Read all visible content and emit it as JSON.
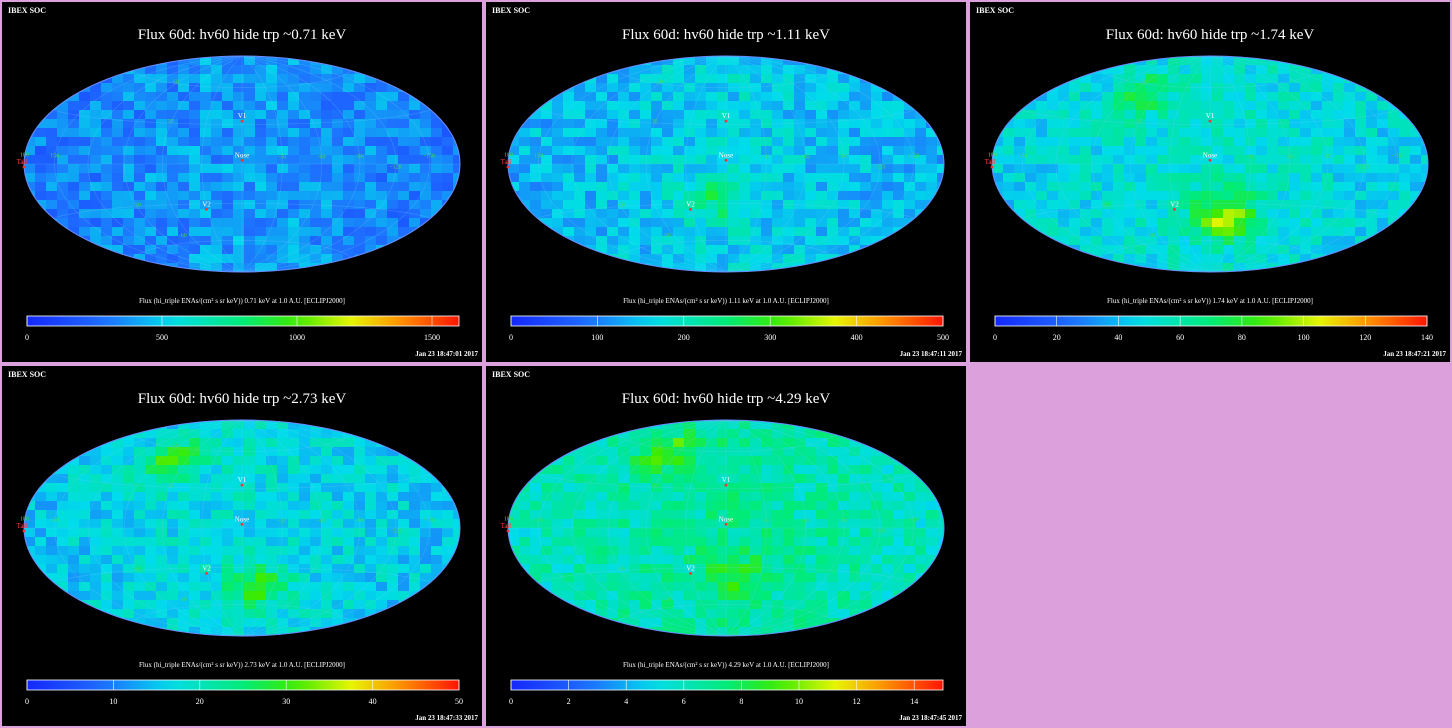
{
  "header_label": "IBEX SOC",
  "chart_data": [
    {
      "type": "heatmap",
      "title": "Flux   60d: hv60 hide trp ~0.71 keV",
      "colorbar_label": "Flux (hi_triple ENAs/(cm² s sr keV))  0.71 keV at 1.0 A.U. [ECLIPJ2000]",
      "colorbar_range": [
        0,
        1600
      ],
      "colorbar_ticks": [
        "0",
        "500",
        "1000",
        "1500"
      ],
      "colorbar_tick_values": [
        0,
        500,
        1000,
        1500
      ],
      "timestamp": "Jan 23 18:47:01 2017",
      "mean_level": 0.25,
      "hot_spots": [],
      "markers": [
        {
          "label": "V1",
          "lon": 0,
          "lat": 35
        },
        {
          "label": "Nose",
          "lon": 0,
          "lat": 5
        },
        {
          "label": "V2",
          "lon": 30,
          "lat": -32
        },
        {
          "label": "Tail",
          "lon": 180,
          "lat": 0
        }
      ],
      "grid_labels": [
        "-30",
        "-60",
        "-90",
        "-120",
        "-150",
        "180",
        "150",
        "60",
        "30",
        "-30",
        "-60"
      ]
    },
    {
      "type": "heatmap",
      "title": "Flux   60d: hv60 hide trp ~1.11 keV",
      "colorbar_label": "Flux (hi_triple ENAs/(cm² s sr keV))  1.11 keV at 1.0 A.U. [ECLIPJ2000]",
      "colorbar_range": [
        0,
        500
      ],
      "colorbar_ticks": [
        "0",
        "100",
        "200",
        "300",
        "400",
        "500"
      ],
      "colorbar_tick_values": [
        0,
        100,
        200,
        300,
        400,
        500
      ],
      "timestamp": "Jan 23 18:47:11 2017",
      "mean_level": 0.33,
      "hot_spots": [
        {
          "lon": 10,
          "lat": -20,
          "level": 0.5
        }
      ],
      "markers": [
        {
          "label": "V1",
          "lon": 0,
          "lat": 35
        },
        {
          "label": "Nose",
          "lon": 0,
          "lat": 5
        },
        {
          "label": "V2",
          "lon": 30,
          "lat": -32
        },
        {
          "label": "Tail",
          "lon": 180,
          "lat": 0
        }
      ],
      "grid_labels": [
        "-30",
        "-60",
        "-90",
        "-120",
        "-150",
        "180",
        "150",
        "60",
        "30",
        "-30",
        "-60"
      ]
    },
    {
      "type": "heatmap",
      "title": "Flux   60d: hv60 hide trp ~1.74 keV",
      "colorbar_label": "Flux (hi_triple ENAs/(cm² s sr keV))  1.74 keV at 1.0 A.U. [ECLIPJ2000]",
      "colorbar_range": [
        0,
        140
      ],
      "colorbar_ticks": [
        "0",
        "20",
        "40",
        "60",
        "80",
        "100",
        "120",
        "140"
      ],
      "colorbar_tick_values": [
        0,
        20,
        40,
        60,
        80,
        100,
        120,
        140
      ],
      "timestamp": "Jan 23 18:47:21 2017",
      "mean_level": 0.38,
      "hot_spots": [
        {
          "lon": 75,
          "lat": 40,
          "level": 0.6
        },
        {
          "lon": -15,
          "lat": -30,
          "level": 0.72
        }
      ],
      "markers": [
        {
          "label": "V1",
          "lon": 0,
          "lat": 35
        },
        {
          "label": "Nose",
          "lon": 0,
          "lat": 5
        },
        {
          "label": "V2",
          "lon": 30,
          "lat": -32
        },
        {
          "label": "Tail",
          "lon": 180,
          "lat": 0
        }
      ],
      "grid_labels": [
        "-30",
        "-60",
        "-90",
        "-120",
        "-150",
        "180",
        "150",
        "60",
        "30",
        "-30",
        "-60"
      ]
    },
    {
      "type": "heatmap",
      "title": "Flux   60d: hv60 hide trp ~2.73 keV",
      "colorbar_label": "Flux (hi_triple ENAs/(cm² s sr keV))  2.73 keV at 1.0 A.U. [ECLIPJ2000]",
      "colorbar_range": [
        0,
        50
      ],
      "colorbar_ticks": [
        "0",
        "10",
        "20",
        "30",
        "40",
        "50"
      ],
      "colorbar_tick_values": [
        0,
        10,
        20,
        30,
        40,
        50
      ],
      "timestamp": "Jan 23 18:47:33 2017",
      "mean_level": 0.36,
      "hot_spots": [
        {
          "lon": 75,
          "lat": 40,
          "level": 0.66
        },
        {
          "lon": -15,
          "lat": -35,
          "level": 0.62
        }
      ],
      "markers": [
        {
          "label": "V1",
          "lon": 0,
          "lat": 35
        },
        {
          "label": "Nose",
          "lon": 0,
          "lat": 5
        },
        {
          "label": "V2",
          "lon": 30,
          "lat": -32
        },
        {
          "label": "Tail",
          "lon": 180,
          "lat": 0
        }
      ],
      "grid_labels": [
        "-30",
        "-60",
        "-90",
        "-120",
        "-150",
        "180",
        "150",
        "60",
        "30",
        "-30",
        "-60"
      ]
    },
    {
      "type": "heatmap",
      "title": "Flux   60d: hv60 hide trp ~4.29 keV",
      "colorbar_label": "Flux (hi_triple ENAs/(cm² s sr keV))  4.29 keV at 1.0 A.U. [ECLIPJ2000]",
      "colorbar_range": [
        0,
        15
      ],
      "colorbar_ticks": [
        "0",
        "2",
        "4",
        "6",
        "8",
        "10",
        "12",
        "14"
      ],
      "colorbar_tick_values": [
        0,
        2,
        4,
        6,
        8,
        10,
        12,
        14
      ],
      "timestamp": "Jan 23 18:47:45 2017",
      "mean_level": 0.45,
      "hot_spots": [
        {
          "lon": 70,
          "lat": 45,
          "level": 0.65
        },
        {
          "lon": -10,
          "lat": -30,
          "level": 0.6
        }
      ],
      "markers": [
        {
          "label": "V1",
          "lon": 0,
          "lat": 35
        },
        {
          "label": "Nose",
          "lon": 0,
          "lat": 5
        },
        {
          "label": "V2",
          "lon": 30,
          "lat": -32
        },
        {
          "label": "Tail",
          "lon": 180,
          "lat": 0
        }
      ],
      "grid_labels": [
        "-30",
        "-60",
        "-90",
        "-120",
        "-150",
        "180",
        "150",
        "60",
        "30",
        "-30",
        "-60"
      ]
    }
  ]
}
